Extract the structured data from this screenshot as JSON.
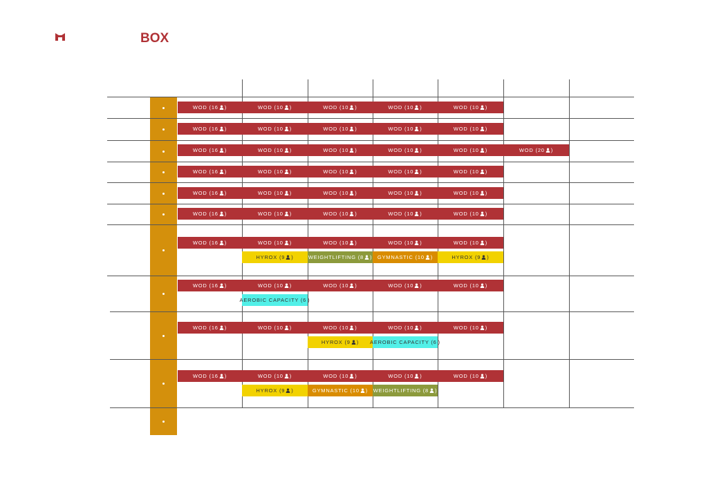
{
  "logo": {
    "text": "BOX"
  },
  "rows": [
    {
      "lines": [
        [
          {
            "label": "WOD (16",
            "close": ")",
            "color": "#b03236"
          },
          {
            "label": "WOD (10",
            "close": ")",
            "color": "#b03236"
          },
          {
            "label": "WOD (10",
            "close": ")",
            "color": "#b03236"
          },
          {
            "label": "WOD (10",
            "close": ")",
            "color": "#b03236"
          },
          {
            "label": "WOD (10",
            "close": ")",
            "color": "#b03236"
          },
          null,
          null
        ]
      ]
    },
    {
      "lines": [
        [
          {
            "label": "WOD (16",
            "close": ")",
            "color": "#b03236"
          },
          {
            "label": "WOD (10",
            "close": ")",
            "color": "#b03236"
          },
          {
            "label": "WOD (10",
            "close": ")",
            "color": "#b03236"
          },
          {
            "label": "WOD (10",
            "close": ")",
            "color": "#b03236"
          },
          {
            "label": "WOD (10",
            "close": ")",
            "color": "#b03236"
          },
          null,
          null
        ]
      ]
    },
    {
      "lines": [
        [
          {
            "label": "WOD (16",
            "close": ")",
            "color": "#b03236"
          },
          {
            "label": "WOD (10",
            "close": ")",
            "color": "#b03236"
          },
          {
            "label": "WOD (10",
            "close": ")",
            "color": "#b03236"
          },
          {
            "label": "WOD (10",
            "close": ")",
            "color": "#b03236"
          },
          {
            "label": "WOD (10",
            "close": ")",
            "color": "#b03236"
          },
          {
            "label": "WOD (20",
            "close": ")",
            "color": "#b03236"
          },
          null
        ]
      ]
    },
    {
      "lines": [
        [
          {
            "label": "WOD (16",
            "close": ")",
            "color": "#b03236"
          },
          {
            "label": "WOD (10",
            "close": ")",
            "color": "#b03236"
          },
          {
            "label": "WOD (10",
            "close": ")",
            "color": "#b03236"
          },
          {
            "label": "WOD (10",
            "close": ")",
            "color": "#b03236"
          },
          {
            "label": "WOD (10",
            "close": ")",
            "color": "#b03236"
          },
          null,
          null
        ]
      ]
    },
    {
      "lines": [
        [
          {
            "label": "WOD (16",
            "close": ")",
            "color": "#b03236"
          },
          {
            "label": "WOD (10",
            "close": ")",
            "color": "#b03236"
          },
          {
            "label": "WOD (10",
            "close": ")",
            "color": "#b03236"
          },
          {
            "label": "WOD (10",
            "close": ")",
            "color": "#b03236"
          },
          {
            "label": "WOD (10",
            "close": ")",
            "color": "#b03236"
          },
          null,
          null
        ]
      ]
    },
    {
      "lines": [
        [
          {
            "label": "WOD (16",
            "close": ")",
            "color": "#b03236"
          },
          {
            "label": "WOD (10",
            "close": ")",
            "color": "#b03236"
          },
          {
            "label": "WOD (10",
            "close": ")",
            "color": "#b03236"
          },
          {
            "label": "WOD (10",
            "close": ")",
            "color": "#b03236"
          },
          {
            "label": "WOD (10",
            "close": ")",
            "color": "#b03236"
          },
          null,
          null
        ]
      ]
    },
    {
      "lines": [
        [
          {
            "label": "WOD (16",
            "close": ")",
            "color": "#b03236"
          },
          {
            "label": "WOD (10",
            "close": ")",
            "color": "#b03236"
          },
          {
            "label": "WOD (10",
            "close": ")",
            "color": "#b03236"
          },
          {
            "label": "WOD (10",
            "close": ")",
            "color": "#b03236"
          },
          {
            "label": "WOD (10",
            "close": ")",
            "color": "#b03236"
          },
          null,
          null
        ],
        [
          null,
          {
            "label": "HYROX (9",
            "close": ")",
            "color": "#f2d200"
          },
          {
            "label": "WEIGHTLIFTING (8",
            "close": ")",
            "color": "#8c9a3c"
          },
          {
            "label": "GYMNASTIC (10",
            "close": ")",
            "color": "#d98c00"
          },
          {
            "label": "HYROX (9",
            "close": ")",
            "color": "#f2d200"
          },
          null,
          null
        ]
      ]
    },
    {
      "lines": [
        [
          {
            "label": "WOD (16",
            "close": ")",
            "color": "#b03236"
          },
          {
            "label": "WOD (10",
            "close": ")",
            "color": "#b03236"
          },
          {
            "label": "WOD (10",
            "close": ")",
            "color": "#b03236"
          },
          {
            "label": "WOD (10",
            "close": ")",
            "color": "#b03236"
          },
          {
            "label": "WOD (10",
            "close": ")",
            "color": "#b03236"
          },
          null,
          null
        ],
        [
          null,
          {
            "label": "AEROBIC CAPACITY (6",
            "close": ")",
            "color": "#52f0e8"
          },
          null,
          null,
          null,
          null,
          null
        ]
      ]
    },
    {
      "lines": [
        [
          {
            "label": "WOD (16",
            "close": ")",
            "color": "#b03236"
          },
          {
            "label": "WOD (10",
            "close": ")",
            "color": "#b03236"
          },
          {
            "label": "WOD (10",
            "close": ")",
            "color": "#b03236"
          },
          {
            "label": "WOD (10",
            "close": ")",
            "color": "#b03236"
          },
          {
            "label": "WOD (10",
            "close": ")",
            "color": "#b03236"
          },
          null,
          null
        ],
        [
          null,
          null,
          {
            "label": "HYROX (9",
            "close": ")",
            "color": "#f2d200"
          },
          {
            "label": "AEROBIC CAPACITY (6",
            "close": ")",
            "color": "#52f0e8"
          },
          null,
          null,
          null
        ]
      ]
    },
    {
      "lines": [
        [
          {
            "label": "WOD (16",
            "close": ")",
            "color": "#b03236"
          },
          {
            "label": "WOD (10",
            "close": ")",
            "color": "#b03236"
          },
          {
            "label": "WOD (10",
            "close": ")",
            "color": "#b03236"
          },
          {
            "label": "WOD (10",
            "close": ")",
            "color": "#b03236"
          },
          {
            "label": "WOD (10",
            "close": ")",
            "color": "#b03236"
          },
          null,
          null
        ],
        [
          null,
          {
            "label": "HYROX (9",
            "close": ")",
            "color": "#f2d200"
          },
          {
            "label": "GYMNASTIC (10",
            "close": ")",
            "color": "#d98c00"
          },
          {
            "label": "WEIGHTLIFTING (8",
            "close": ")",
            "color": "#8c9a3c"
          },
          null,
          null,
          null
        ]
      ]
    },
    {
      "lines": []
    }
  ]
}
